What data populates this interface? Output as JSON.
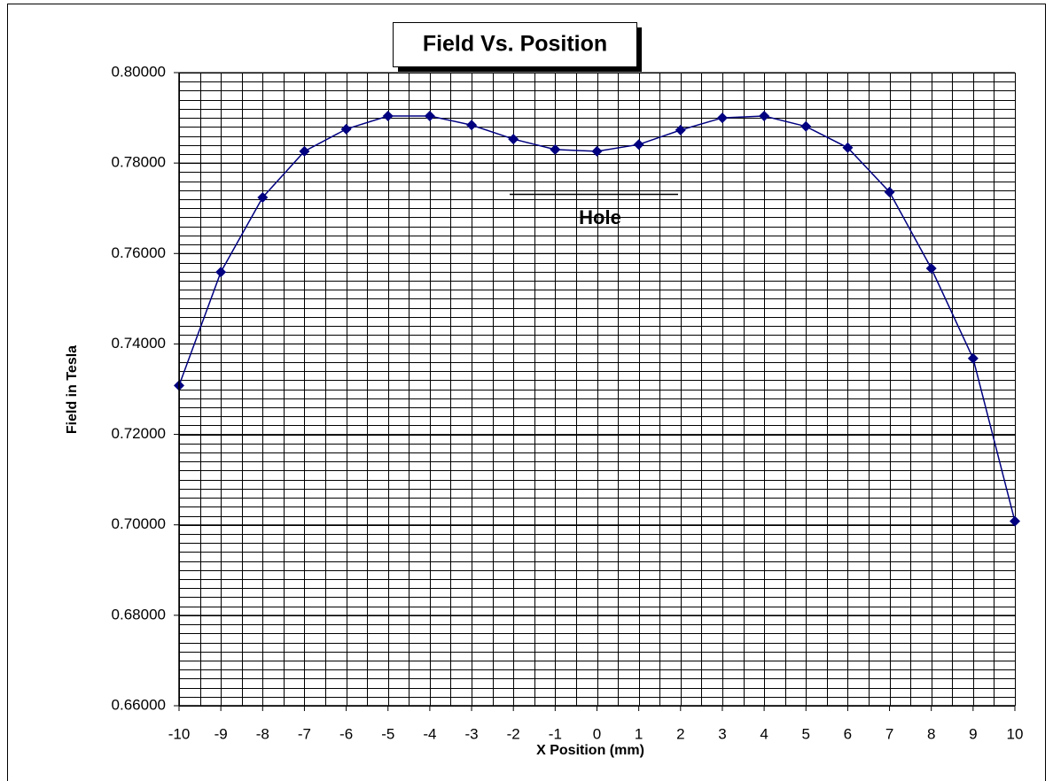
{
  "chart_data": {
    "type": "line",
    "title": "Field Vs. Position",
    "x_label": "X Position (mm)",
    "y_label": "Field in Tesla",
    "annotation": "Hole",
    "x": [
      -10,
      -9,
      -8,
      -7,
      -6,
      -5,
      -4,
      -3,
      -2,
      -1,
      0,
      1,
      2,
      3,
      4,
      5,
      6,
      7,
      8,
      9,
      10
    ],
    "series": [
      {
        "color": "#000080",
        "values": [
          0.7308,
          0.7559,
          0.7724,
          0.7826,
          0.7875,
          0.7904,
          0.7904,
          0.7884,
          0.7853,
          0.783,
          0.7826,
          0.7841,
          0.7873,
          0.79,
          0.7904,
          0.7881,
          0.7834,
          0.7736,
          0.7567,
          0.7368,
          0.7008
        ]
      }
    ],
    "xlim": [
      -10,
      10
    ],
    "ylim": [
      0.66,
      0.8
    ],
    "xticks": [
      -10,
      -9,
      -8,
      -7,
      -6,
      -5,
      -4,
      -3,
      -2,
      -1,
      0,
      1,
      2,
      3,
      4,
      5,
      6,
      7,
      8,
      9,
      10
    ],
    "yticks": [
      {
        "value": 0.66,
        "label": "0.66000"
      },
      {
        "value": 0.68,
        "label": "0.68000"
      },
      {
        "value": 0.7,
        "label": "0.70000"
      },
      {
        "value": 0.72,
        "label": "0.72000"
      },
      {
        "value": 0.74,
        "label": "0.74000"
      },
      {
        "value": 0.76,
        "label": "0.76000"
      },
      {
        "value": 0.78,
        "label": "0.78000"
      },
      {
        "value": 0.8,
        "label": "0.80000"
      }
    ],
    "grid": true,
    "minor_grid_step": {
      "x": 0.5,
      "y": 0.002
    }
  }
}
